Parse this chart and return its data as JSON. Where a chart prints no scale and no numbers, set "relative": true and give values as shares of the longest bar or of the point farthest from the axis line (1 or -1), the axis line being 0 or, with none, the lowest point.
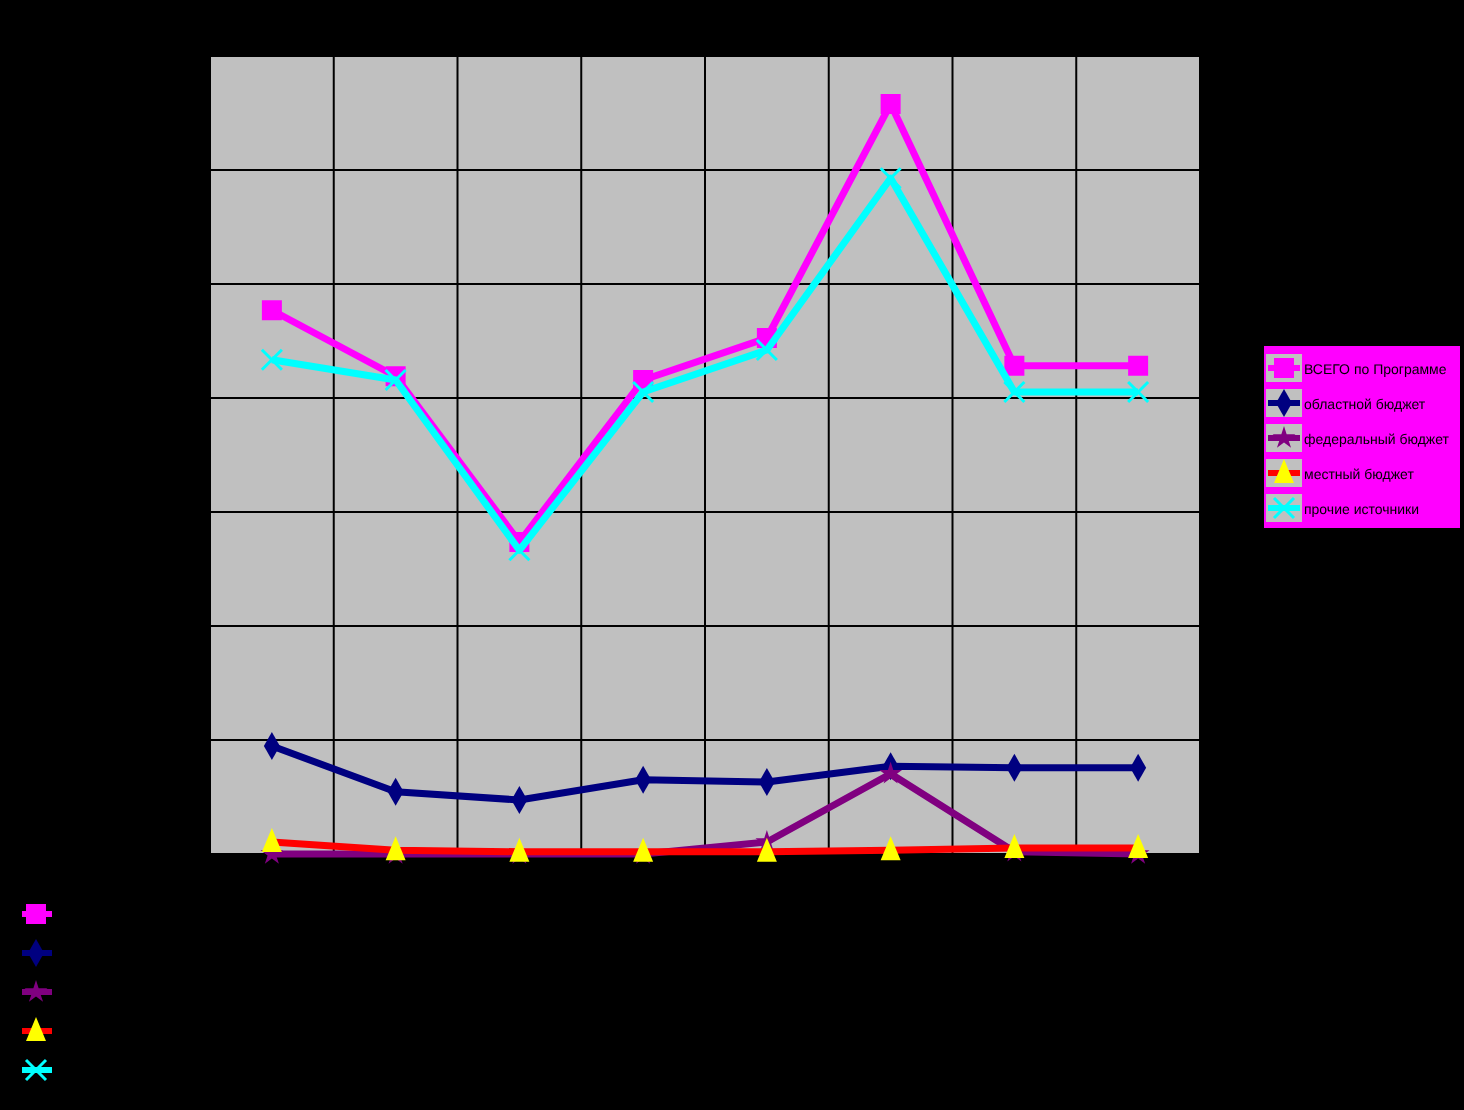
{
  "chart_data": {
    "type": "line",
    "relative": true,
    "categories": [
      null,
      null,
      null,
      null,
      null,
      null,
      null,
      null
    ],
    "grid": true,
    "legend": "right",
    "series": [
      {
        "name": "ВСЕГО по Программе",
        "color": "#ff00ff",
        "marker": "square",
        "values": [
          0.725,
          0.637,
          0.416,
          0.632,
          0.688,
          1,
          0.651,
          0.651
        ]
      },
      {
        "name": "областной бюджет",
        "color": "#000080",
        "marker": "diamond",
        "values": [
          0.144,
          0.083,
          0.072,
          0.099,
          0.096,
          0.117,
          0.115,
          0.115
        ]
      },
      {
        "name": "федеральный бюджет",
        "color": "#800080",
        "marker": "star",
        "values": [
          0,
          0,
          0,
          0,
          0.016,
          0.107,
          0.003,
          0
        ]
      },
      {
        "name": "местный бюджет",
        "color": "#ff0000",
        "marker": "triangle",
        "values": [
          0.016,
          0.005,
          0.003,
          0.003,
          0.003,
          0.005,
          0.008,
          0.008
        ]
      },
      {
        "name": "прочие источники",
        "color": "#00ffff",
        "marker": "cross",
        "values": [
          0.659,
          0.632,
          0.405,
          0.616,
          0.672,
          0.901,
          0.616,
          0.616
        ]
      }
    ]
  }
}
